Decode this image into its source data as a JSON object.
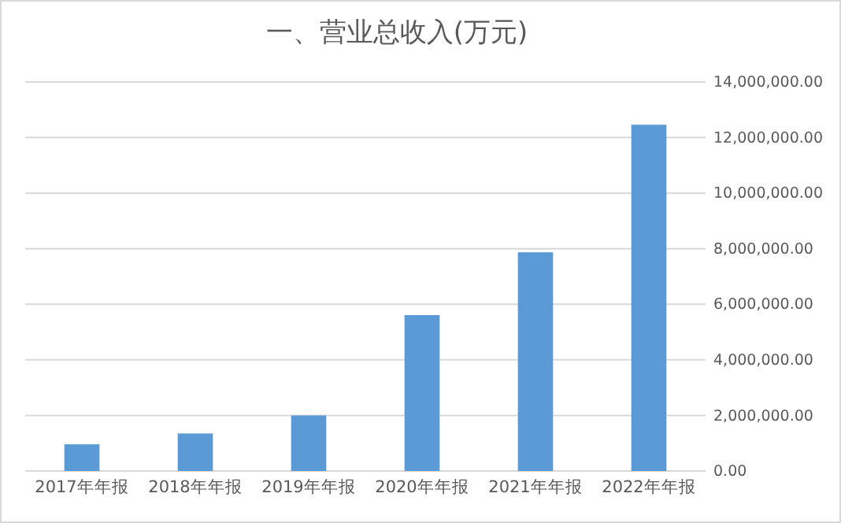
{
  "chart_data": {
    "type": "bar",
    "title": "一、营业总收入(万元)",
    "categories": [
      "2017年年报",
      "2018年年报",
      "2019年年报",
      "2020年年报",
      "2021年年报",
      "2022年年报"
    ],
    "values": [
      960000,
      1350000,
      2000000,
      5610000,
      7870000,
      12460000
    ],
    "color": "#5b9bd5",
    "ylim": [
      0,
      14000000
    ],
    "yticks": [
      {
        "value": 0,
        "label": "0.00"
      },
      {
        "value": 2000000,
        "label": "2,000,000.00"
      },
      {
        "value": 4000000,
        "label": "4,000,000.00"
      },
      {
        "value": 6000000,
        "label": "6,000,000.00"
      },
      {
        "value": 8000000,
        "label": "8,000,000.00"
      },
      {
        "value": 10000000,
        "label": "10,000,000.00"
      },
      {
        "value": 12000000,
        "label": "12,000,000.00"
      },
      {
        "value": 14000000,
        "label": "14,000,000.00"
      }
    ],
    "grid": "y"
  }
}
